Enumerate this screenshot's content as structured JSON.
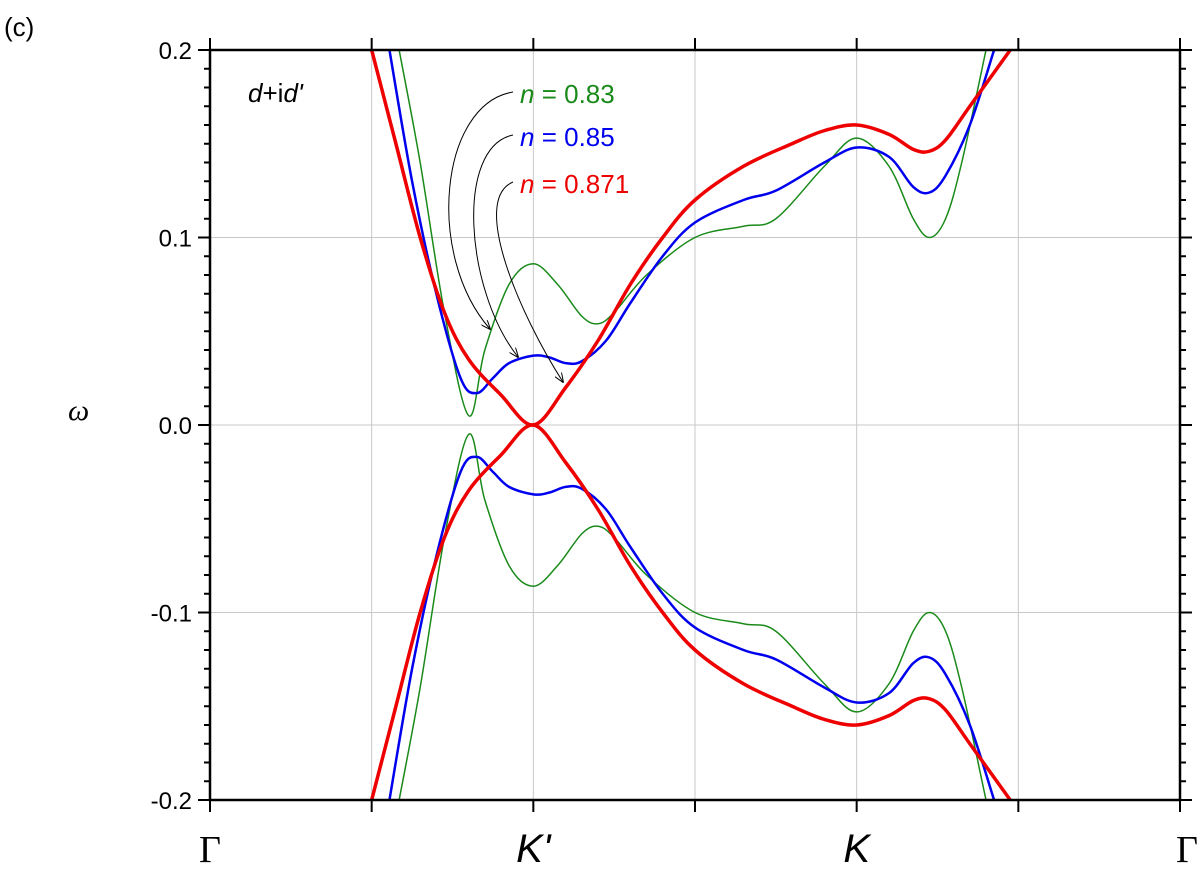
{
  "chart_data": {
    "type": "line",
    "panel_label": "(c)",
    "title": "",
    "xlabel": "",
    "ylabel": "ω",
    "annotation": {
      "pre": "d",
      "mid": "+i",
      "post": "d'"
    },
    "xlim": [
      0,
      6
    ],
    "ylim": [
      -0.2,
      0.2
    ],
    "x_tick_labels": [
      {
        "x": 0,
        "label": "Γ",
        "style": "serif"
      },
      {
        "x": 2,
        "label": "K'",
        "style": "italic"
      },
      {
        "x": 4,
        "label": "K",
        "style": "italic"
      },
      {
        "x": 6,
        "label": "Γ",
        "style": "serif"
      }
    ],
    "x_grid": [
      1,
      2,
      3,
      4,
      5
    ],
    "y_ticks": [
      {
        "value": 0.2,
        "label": "0.2"
      },
      {
        "value": 0.1,
        "label": "0.1"
      },
      {
        "value": 0.0,
        "label": "0.0"
      },
      {
        "value": -0.1,
        "label": "-0.1"
      },
      {
        "value": -0.2,
        "label": "-0.2"
      }
    ],
    "grid": true,
    "legend_placement": "top-center",
    "series": [
      {
        "name": "0.83",
        "label_var": "n",
        "label_eq": " = ",
        "color": "#1a8a1a",
        "points": [
          [
            1.17,
            0.2
          ],
          [
            1.3,
            0.14
          ],
          [
            1.45,
            0.06
          ],
          [
            1.6,
            0.005
          ],
          [
            1.7,
            0.04
          ],
          [
            1.85,
            0.075
          ],
          [
            2.0,
            0.086
          ],
          [
            2.15,
            0.075
          ],
          [
            2.3,
            0.058
          ],
          [
            2.4,
            0.054
          ],
          [
            2.5,
            0.06
          ],
          [
            2.7,
            0.08
          ],
          [
            3.0,
            0.1
          ],
          [
            3.3,
            0.106
          ],
          [
            3.5,
            0.11
          ],
          [
            3.8,
            0.138
          ],
          [
            4.0,
            0.153
          ],
          [
            4.2,
            0.138
          ],
          [
            4.35,
            0.11
          ],
          [
            4.45,
            0.1
          ],
          [
            4.55,
            0.11
          ],
          [
            4.65,
            0.14
          ],
          [
            4.8,
            0.2
          ]
        ]
      },
      {
        "name": "0.85",
        "label_var": "n",
        "label_eq": " = ",
        "color": "#0000ee",
        "points": [
          [
            1.11,
            0.2
          ],
          [
            1.25,
            0.13
          ],
          [
            1.4,
            0.07
          ],
          [
            1.55,
            0.025
          ],
          [
            1.65,
            0.017
          ],
          [
            1.75,
            0.025
          ],
          [
            1.85,
            0.033
          ],
          [
            2.0,
            0.037
          ],
          [
            2.1,
            0.036
          ],
          [
            2.2,
            0.033
          ],
          [
            2.3,
            0.034
          ],
          [
            2.45,
            0.045
          ],
          [
            2.6,
            0.065
          ],
          [
            2.8,
            0.09
          ],
          [
            3.0,
            0.108
          ],
          [
            3.3,
            0.12
          ],
          [
            3.5,
            0.125
          ],
          [
            3.8,
            0.14
          ],
          [
            4.0,
            0.148
          ],
          [
            4.2,
            0.143
          ],
          [
            4.35,
            0.127
          ],
          [
            4.45,
            0.124
          ],
          [
            4.55,
            0.133
          ],
          [
            4.7,
            0.16
          ],
          [
            4.85,
            0.2
          ]
        ]
      },
      {
        "name": "0.871",
        "label_var": "n",
        "label_eq": " = ",
        "color": "#ee0000",
        "points": [
          [
            1.0,
            0.2
          ],
          [
            1.15,
            0.15
          ],
          [
            1.3,
            0.1
          ],
          [
            1.45,
            0.06
          ],
          [
            1.6,
            0.035
          ],
          [
            1.8,
            0.016
          ],
          [
            2.0,
            0.0
          ],
          [
            2.2,
            0.02
          ],
          [
            2.4,
            0.045
          ],
          [
            2.6,
            0.075
          ],
          [
            2.8,
            0.1
          ],
          [
            3.0,
            0.12
          ],
          [
            3.3,
            0.138
          ],
          [
            3.6,
            0.15
          ],
          [
            3.8,
            0.157
          ],
          [
            4.0,
            0.16
          ],
          [
            4.2,
            0.155
          ],
          [
            4.35,
            0.147
          ],
          [
            4.45,
            0.146
          ],
          [
            4.55,
            0.152
          ],
          [
            4.7,
            0.17
          ],
          [
            4.95,
            0.2
          ]
        ]
      }
    ]
  }
}
